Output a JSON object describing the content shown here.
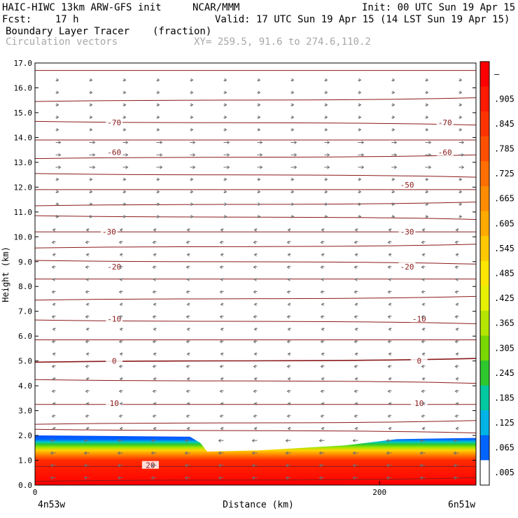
{
  "header": {
    "model": "HAIC-HIWC 13km ARW-GFS init",
    "org": "NCAR/MMM",
    "init": "Init: 00 UTC Sun 19 Apr 15",
    "fcst": "Fcst:    17 h",
    "valid": "Valid: 17 UTC Sun 19 Apr 15 (14 LST Sun 19 Apr 15)",
    "field": "Boundary Layer Tracer",
    "units": "(fraction)",
    "vectors": "Circulation vectors",
    "xy": "XY= 259.5, 91.6 to 274.6,110.2"
  },
  "chart_data": {
    "type": "cross-section",
    "ylabel": "Height (km)",
    "xlabel": "Distance (km)",
    "ylim": [
      0,
      17
    ],
    "xlim": [
      0,
      256
    ],
    "y_ticks": [
      "0.0",
      "1.0",
      "2.0",
      "3.0",
      "4.0",
      "5.0",
      "6.0",
      "7.0",
      "8.0",
      "9.0",
      "10.0",
      "11.0",
      "12.0",
      "13.0",
      "14.0",
      "15.0",
      "16.0",
      "17.0"
    ],
    "x_ticks": [
      {
        "value": 0,
        "label": "0"
      },
      {
        "value": 200,
        "label": "200"
      }
    ],
    "endpoints": {
      "left": "4n53w",
      "right": "6n51w"
    },
    "colorbar": {
      "labels": [
        "–",
        ".905",
        ".845",
        ".785",
        ".725",
        ".665",
        ".605",
        ".545",
        ".485",
        ".425",
        ".365",
        ".305",
        ".245",
        ".185",
        ".125",
        ".065",
        ".005"
      ],
      "colors": [
        "#ff0000",
        "#ff1a00",
        "#ff3300",
        "#ff5000",
        "#ff6e00",
        "#ff8c00",
        "#ffaa00",
        "#ffc800",
        "#ffe600",
        "#e6f000",
        "#b4e600",
        "#78d800",
        "#2ec82e",
        "#00c8a0",
        "#00b4e6",
        "#0064ff",
        "#ffffff"
      ]
    },
    "temperature_contours": {
      "color": "#8b1a1a",
      "levels_km": [
        0.2,
        0.75,
        2.2,
        2.5,
        3.25,
        4.2,
        5.0,
        5.85,
        6.6,
        7.5,
        8.3,
        9.0,
        9.6,
        10.2,
        10.8,
        11.3,
        11.9,
        12.5,
        13.2,
        13.9,
        14.6,
        15.5,
        16.7
      ],
      "labels": [
        {
          "text": "20",
          "x": 67,
          "y": 0.8
        },
        {
          "text": "10",
          "x": 46,
          "y": 3.3
        },
        {
          "text": "10",
          "x": 223,
          "y": 3.3
        },
        {
          "text": "0",
          "x": 46,
          "y": 5.0
        },
        {
          "text": "0",
          "x": 223,
          "y": 5.0
        },
        {
          "text": "-10",
          "x": 46,
          "y": 6.7
        },
        {
          "text": "-10",
          "x": 223,
          "y": 6.7
        },
        {
          "text": "-20",
          "x": 46,
          "y": 8.8
        },
        {
          "text": "-20",
          "x": 216,
          "y": 8.8
        },
        {
          "text": "-30",
          "x": 43,
          "y": 10.2
        },
        {
          "text": "-30",
          "x": 216,
          "y": 10.2
        },
        {
          "text": "-50",
          "x": 216,
          "y": 12.1
        },
        {
          "text": "-60",
          "x": 46,
          "y": 13.4
        },
        {
          "text": "-60",
          "x": 238,
          "y": 13.4
        },
        {
          "text": "-70",
          "x": 46,
          "y": 14.6
        },
        {
          "text": "-70",
          "x": 238,
          "y": 14.6
        }
      ]
    },
    "boundary_layer": {
      "top_km": [
        {
          "x": 0,
          "y": 2.0
        },
        {
          "x": 90,
          "y": 1.95
        },
        {
          "x": 96,
          "y": 1.7
        },
        {
          "x": 100,
          "y": 1.35
        },
        {
          "x": 130,
          "y": 1.4
        },
        {
          "x": 180,
          "y": 1.6
        },
        {
          "x": 210,
          "y": 1.85
        },
        {
          "x": 256,
          "y": 1.9
        }
      ]
    }
  }
}
